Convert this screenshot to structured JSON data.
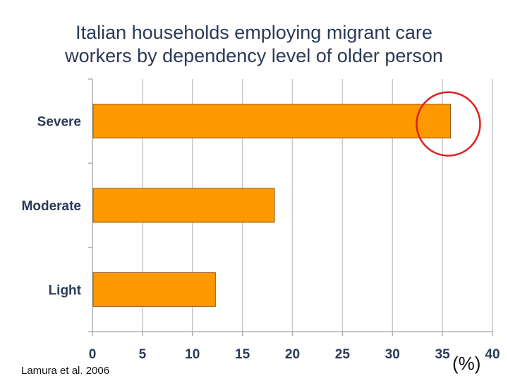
{
  "page": {
    "title_line1": "Italian households employing migrant care",
    "title_line2": "workers by dependency level of older person",
    "source": "Lamura et al. 2006",
    "unit_label": "(%)"
  },
  "chart_data": {
    "type": "bar",
    "orientation": "horizontal",
    "categories": [
      "Severe",
      "Moderate",
      "Light"
    ],
    "values": [
      35.8,
      18.2,
      12.3
    ],
    "xlim": [
      0,
      40
    ],
    "xticks": [
      0,
      5,
      10,
      15,
      20,
      25,
      30,
      35,
      40
    ],
    "grid": "vertical",
    "bar_color": "#ff9900",
    "annotation": "red circle highlighting end of Severe bar",
    "annotation_color": "#e02020"
  }
}
